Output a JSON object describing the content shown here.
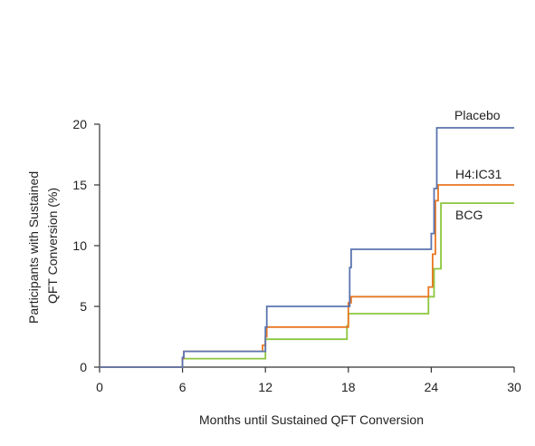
{
  "chart_data": {
    "type": "line",
    "step": true,
    "title": "",
    "xlabel": "Months until Sustained QFT Conversion",
    "ylabel": "Participants with Sustained QFT Conversion (%)",
    "ylabel_lines": [
      "Participants with Sustained",
      "QFT Conversion (%)"
    ],
    "xlim": [
      0,
      30
    ],
    "ylim": [
      0,
      20
    ],
    "xticks": [
      0,
      6,
      12,
      18,
      24,
      30
    ],
    "yticks": [
      0,
      5,
      10,
      15,
      20
    ],
    "grid": false,
    "legend": "direct-labels-right",
    "series": [
      {
        "name": "Placebo",
        "color": "#5b74b0",
        "points": [
          [
            0,
            0
          ],
          [
            6,
            0
          ],
          [
            6,
            0.8
          ],
          [
            6.1,
            1.3
          ],
          [
            11.9,
            1.3
          ],
          [
            12,
            3.3
          ],
          [
            12.1,
            5.0
          ],
          [
            17.9,
            5.0
          ],
          [
            18.1,
            8.2
          ],
          [
            18.2,
            9.7
          ],
          [
            23.8,
            9.7
          ],
          [
            24,
            11.0
          ],
          [
            24.2,
            14.7
          ],
          [
            24.4,
            19.7
          ],
          [
            30,
            19.7
          ]
        ]
      },
      {
        "name": "H4:IC31",
        "color": "#e87722",
        "points": [
          [
            0,
            0
          ],
          [
            6,
            0
          ],
          [
            6,
            0.7
          ],
          [
            6.1,
            1.3
          ],
          [
            11.6,
            1.3
          ],
          [
            11.8,
            1.8
          ],
          [
            12,
            2.5
          ],
          [
            12.1,
            3.3
          ],
          [
            17.8,
            3.3
          ],
          [
            18,
            5.3
          ],
          [
            18.2,
            5.8
          ],
          [
            23.6,
            5.8
          ],
          [
            23.8,
            6.6
          ],
          [
            24.1,
            9.3
          ],
          [
            24.3,
            13.7
          ],
          [
            24.5,
            15.0
          ],
          [
            30,
            15.0
          ]
        ]
      },
      {
        "name": "BCG",
        "color": "#8cc63e",
        "points": [
          [
            0,
            0
          ],
          [
            6,
            0
          ],
          [
            6,
            0.7
          ],
          [
            11.8,
            0.7
          ],
          [
            12,
            2.3
          ],
          [
            17.6,
            2.3
          ],
          [
            17.9,
            3.4
          ],
          [
            18,
            4.4
          ],
          [
            23.6,
            4.4
          ],
          [
            23.8,
            5.8
          ],
          [
            24.2,
            8.1
          ],
          [
            24.6,
            8.1
          ],
          [
            24.7,
            13.5
          ],
          [
            30,
            13.5
          ]
        ]
      }
    ]
  }
}
